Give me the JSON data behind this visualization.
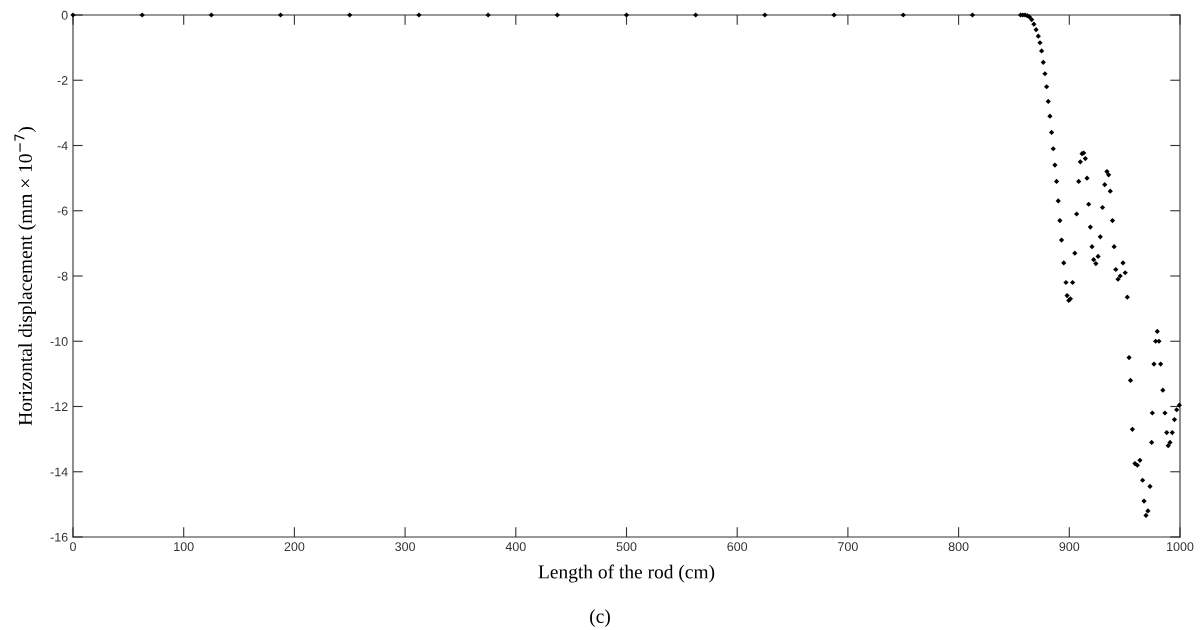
{
  "chart_data": {
    "type": "scatter",
    "xlabel": "Length of the rod (cm)",
    "ylabel": "Horizontal displacement (mm × 10$^{−7}$)",
    "annotations": [
      "(c)"
    ],
    "x": [
      0,
      62.5,
      125,
      187.5,
      250,
      312.5,
      375,
      437.5,
      500,
      562.5,
      625,
      687.5,
      750,
      812.5,
      856,
      858,
      860,
      862,
      864,
      866,
      868,
      870,
      872,
      873.5,
      875,
      876.5,
      878,
      879.5,
      881,
      882.5,
      884,
      885.5,
      887,
      888.5,
      890,
      891.5,
      893,
      895,
      897,
      898,
      899.5,
      901,
      903,
      905,
      906.6,
      908.5,
      910,
      911.5,
      913,
      914.5,
      916,
      917.5,
      919,
      920.5,
      922,
      924,
      926,
      928,
      930,
      932,
      934,
      935.5,
      937,
      939,
      940.5,
      942,
      944,
      946,
      948.5,
      950.5,
      952.4,
      954,
      955.3,
      957,
      959.3,
      961.5,
      963.8,
      966.2,
      967.5,
      969.3,
      971,
      972.9,
      974.4,
      975,
      976.5,
      978,
      979.5,
      981,
      982.5,
      984.5,
      986.4,
      988,
      989.4,
      991,
      993,
      995,
      997,
      999.4
    ],
    "values": [
      0,
      0,
      0,
      0,
      0,
      0,
      0,
      0,
      0,
      0,
      0,
      0,
      0,
      0,
      0,
      0,
      0,
      -0.02,
      -0.06,
      -0.14,
      -0.28,
      -0.45,
      -0.65,
      -0.85,
      -1.1,
      -1.45,
      -1.8,
      -2.2,
      -2.65,
      -3.1,
      -3.6,
      -4.1,
      -4.6,
      -5.1,
      -5.7,
      -6.3,
      -6.9,
      -7.6,
      -8.2,
      -8.6,
      -8.75,
      -8.7,
      -8.2,
      -7.3,
      -6.1,
      -5.1,
      -4.5,
      -4.25,
      -4.23,
      -4.4,
      -5.0,
      -5.8,
      -6.5,
      -7.1,
      -7.5,
      -7.62,
      -7.4,
      -6.8,
      -5.9,
      -5.2,
      -4.8,
      -4.9,
      -5.4,
      -6.3,
      -7.1,
      -7.8,
      -8.1,
      -8.0,
      -7.6,
      -7.9,
      -8.65,
      -10.5,
      -11.2,
      -12.7,
      -13.75,
      -13.8,
      -13.65,
      -14.26,
      -14.9,
      -15.34,
      -15.2,
      -14.45,
      -13.1,
      -12.2,
      -10.7,
      -10.0,
      -9.7,
      -10.0,
      -10.7,
      -11.5,
      -12.2,
      -12.8,
      -13.2,
      -13.1,
      -12.8,
      -12.4,
      -12.1,
      -11.96
    ],
    "color": "#000000",
    "marker": "diamond",
    "xlim": [
      0,
      1000
    ],
    "xticks": [
      0,
      100,
      200,
      300,
      400,
      500,
      600,
      700,
      800,
      900,
      1000
    ],
    "ylim": [
      -16,
      0
    ],
    "yticks": [
      0,
      -2,
      -4,
      -6,
      -8,
      -10,
      -12,
      -14,
      -16
    ],
    "grid": false,
    "legend": false
  }
}
